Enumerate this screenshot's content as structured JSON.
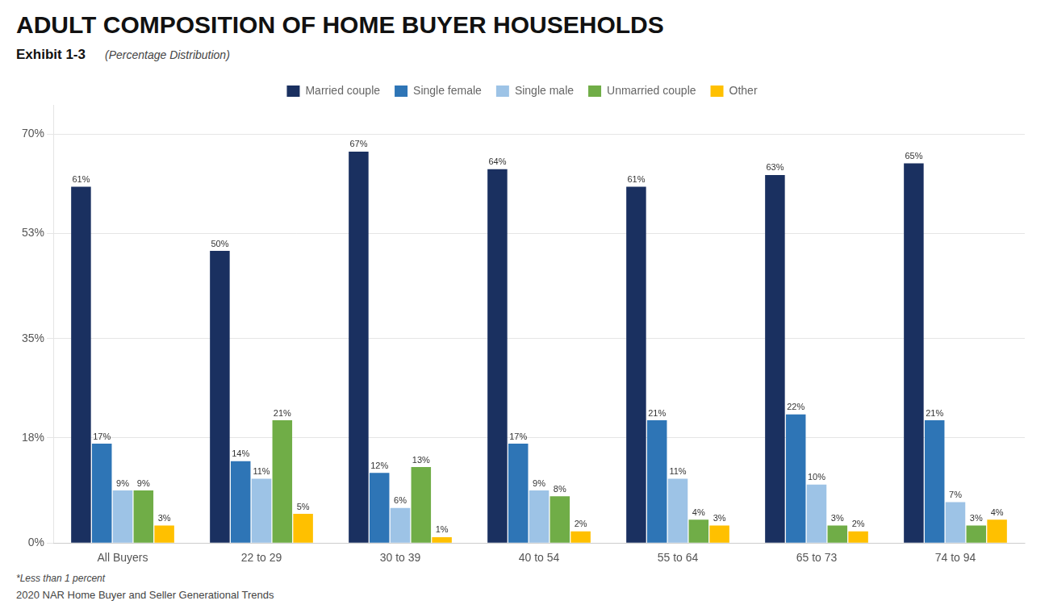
{
  "chart_data": {
    "type": "bar",
    "title": "ADULT COMPOSITION OF HOME BUYER HOUSEHOLDS",
    "exhibit": "Exhibit 1-3",
    "subtitle": "(Percentage Distribution)",
    "footnote": "*Less than 1 percent",
    "source": "2020 NAR Home Buyer and Seller Generational Trends",
    "categories": [
      "All Buyers",
      "22 to 29",
      "30 to 39",
      "40 to 54",
      "55 to 64",
      "65 to 73",
      "74 to 94"
    ],
    "series": [
      {
        "name": "Married couple",
        "color": "#1a3060",
        "values": [
          61,
          50,
          67,
          64,
          61,
          63,
          65
        ],
        "value_labels": [
          "61%",
          "50%",
          "67%",
          "64%",
          "61%",
          "63%",
          "65%"
        ]
      },
      {
        "name": "Single female",
        "color": "#2e75b6",
        "values": [
          17,
          14,
          12,
          17,
          21,
          22,
          21
        ],
        "value_labels": [
          "17%",
          "14%",
          "12%",
          "17%",
          "21%",
          "22%",
          "21%"
        ]
      },
      {
        "name": "Single male",
        "color": "#9dc3e6",
        "values": [
          9,
          11,
          6,
          9,
          11,
          10,
          7
        ],
        "value_labels": [
          "9%",
          "11%",
          "6%",
          "9%",
          "11%",
          "10%",
          "7%"
        ]
      },
      {
        "name": "Unmarried couple",
        "color": "#70ad47",
        "values": [
          9,
          21,
          13,
          8,
          4,
          3,
          3
        ],
        "value_labels": [
          "9%",
          "21%",
          "13%",
          "8%",
          "4%",
          "3%",
          "3%"
        ]
      },
      {
        "name": "Other",
        "color": "#ffc000",
        "values": [
          3,
          5,
          1,
          2,
          3,
          2,
          4
        ],
        "value_labels": [
          "3%",
          "5%",
          "1%",
          "2%",
          "3%",
          "2%",
          "4%"
        ]
      }
    ],
    "ylim": [
      0,
      75
    ],
    "yticks": [
      {
        "value": 0,
        "label": "0%"
      },
      {
        "value": 18,
        "label": "18%"
      },
      {
        "value": 35,
        "label": "35%"
      },
      {
        "value": 53,
        "label": "53%"
      },
      {
        "value": 70,
        "label": "70%"
      }
    ],
    "grid": true,
    "legend": "top",
    "data_labels": true
  }
}
